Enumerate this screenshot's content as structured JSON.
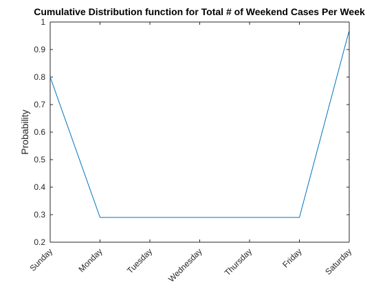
{
  "chart_data": {
    "type": "line",
    "title": "Cumulative Distribution function for Total # of Weekend Cases Per Week",
    "xlabel": "",
    "ylabel": "Probability",
    "categories": [
      "Sunday",
      "Monday",
      "Tuesday",
      "Wednesday",
      "Thursday",
      "Friday",
      "Saturday"
    ],
    "series": [
      {
        "values": [
          0.8,
          0.29,
          0.29,
          0.29,
          0.29,
          0.29,
          0.97
        ],
        "color": "#0072BD"
      }
    ],
    "ylim": [
      0.2,
      1
    ],
    "yticks": [
      "0.2",
      "0.3",
      "0.4",
      "0.5",
      "0.6",
      "0.7",
      "0.8",
      "0.9",
      "1"
    ],
    "grid": false,
    "box": true,
    "legend": "none"
  }
}
